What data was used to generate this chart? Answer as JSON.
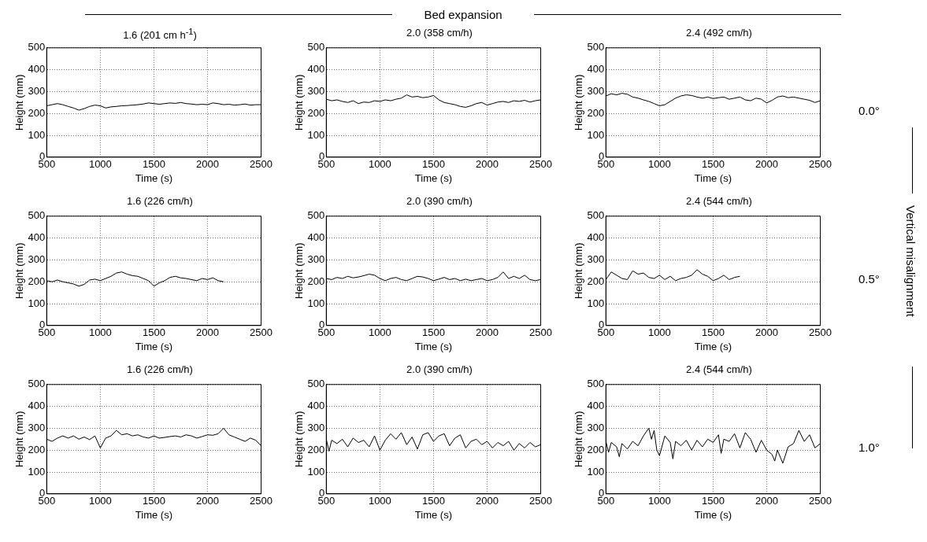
{
  "chart_data": [
    {
      "type": "line",
      "title": "1.6 (201 cm h$^{-1}$)",
      "xlabel": "Time (s)",
      "ylabel": "Height (mm)",
      "color": "#000000",
      "xlim": [
        500,
        2500
      ],
      "xticks": [
        500,
        1000,
        1500,
        2000,
        2500
      ],
      "ylim": [
        0,
        500
      ],
      "yticks": [
        0,
        100,
        200,
        300,
        400,
        500
      ],
      "grid": true,
      "x": [
        500,
        550,
        600,
        650,
        700,
        750,
        800,
        850,
        900,
        950,
        1000,
        1050,
        1100,
        1150,
        1200,
        1250,
        1300,
        1350,
        1400,
        1450,
        1500,
        1550,
        1600,
        1650,
        1700,
        1750,
        1800,
        1850,
        1900,
        1950,
        2000,
        2050,
        2100,
        2150,
        2200,
        2250,
        2300,
        2350,
        2400,
        2450,
        2500
      ],
      "values": [
        235,
        240,
        245,
        240,
        232,
        225,
        215,
        222,
        232,
        238,
        235,
        225,
        230,
        232,
        235,
        236,
        238,
        240,
        243,
        248,
        245,
        242,
        245,
        248,
        246,
        250,
        245,
        243,
        240,
        242,
        240,
        248,
        245,
        240,
        242,
        238,
        240,
        243,
        238,
        240,
        240
      ]
    },
    {
      "type": "line",
      "title": "2.0 (358 cm/h)",
      "xlabel": "Time (s)",
      "ylabel": "Height (mm)",
      "color": "#000000",
      "xlim": [
        500,
        2500
      ],
      "xticks": [
        500,
        1000,
        1500,
        2000,
        2500
      ],
      "ylim": [
        0,
        500
      ],
      "yticks": [
        0,
        100,
        200,
        300,
        400,
        500
      ],
      "grid": true,
      "annotations": [
        "Bed expansion"
      ],
      "x": [
        500,
        550,
        600,
        650,
        700,
        750,
        800,
        850,
        900,
        950,
        1000,
        1050,
        1100,
        1150,
        1200,
        1250,
        1300,
        1350,
        1400,
        1450,
        1500,
        1550,
        1600,
        1650,
        1700,
        1750,
        1800,
        1850,
        1900,
        1950,
        2000,
        2050,
        2100,
        2150,
        2200,
        2250,
        2300,
        2350,
        2400,
        2450,
        2500
      ],
      "values": [
        265,
        258,
        262,
        255,
        250,
        258,
        245,
        252,
        250,
        258,
        255,
        262,
        258,
        265,
        270,
        285,
        275,
        278,
        272,
        275,
        282,
        262,
        250,
        245,
        240,
        232,
        228,
        235,
        245,
        250,
        238,
        245,
        252,
        255,
        250,
        258,
        255,
        260,
        252,
        258,
        262
      ]
    },
    {
      "type": "line",
      "title": "2.4 (492 cm/h)",
      "xlabel": "Time (s)",
      "ylabel": "Height (mm)",
      "color": "#000000",
      "xlim": [
        500,
        2500
      ],
      "xticks": [
        500,
        1000,
        1500,
        2000,
        2500
      ],
      "ylim": [
        0,
        500
      ],
      "yticks": [
        0,
        100,
        200,
        300,
        400,
        500
      ],
      "grid": true,
      "annotations": [
        "0.0°"
      ],
      "x": [
        500,
        550,
        600,
        650,
        700,
        750,
        800,
        850,
        900,
        950,
        1000,
        1050,
        1100,
        1150,
        1200,
        1250,
        1300,
        1350,
        1400,
        1450,
        1500,
        1550,
        1600,
        1650,
        1700,
        1750,
        1800,
        1850,
        1900,
        1950,
        2000,
        2050,
        2100,
        2150,
        2200,
        2250,
        2300,
        2350,
        2400,
        2450,
        2500
      ],
      "values": [
        280,
        290,
        285,
        292,
        288,
        275,
        270,
        262,
        255,
        245,
        235,
        240,
        255,
        270,
        280,
        285,
        282,
        275,
        270,
        275,
        268,
        272,
        275,
        265,
        270,
        275,
        262,
        258,
        270,
        265,
        248,
        260,
        275,
        280,
        272,
        275,
        270,
        265,
        260,
        250,
        258
      ]
    },
    {
      "type": "line",
      "title": "1.6 (226 cm/h)",
      "xlabel": "Time (s)",
      "ylabel": "Height (mm)",
      "color": "#000000",
      "xlim": [
        500,
        2500
      ],
      "xticks": [
        500,
        1000,
        1500,
        2000,
        2500
      ],
      "ylim": [
        0,
        500
      ],
      "yticks": [
        0,
        100,
        200,
        300,
        400,
        500
      ],
      "grid": true,
      "x": [
        500,
        550,
        600,
        650,
        700,
        750,
        800,
        850,
        900,
        950,
        1000,
        1050,
        1100,
        1150,
        1200,
        1250,
        1300,
        1350,
        1400,
        1450,
        1500,
        1550,
        1600,
        1650,
        1700,
        1750,
        1800,
        1850,
        1900,
        1950,
        2000,
        2050,
        2100,
        2150
      ],
      "values": [
        205,
        200,
        208,
        200,
        195,
        190,
        180,
        188,
        208,
        212,
        205,
        215,
        225,
        240,
        245,
        235,
        228,
        225,
        215,
        205,
        180,
        195,
        205,
        220,
        225,
        218,
        215,
        210,
        205,
        215,
        210,
        218,
        205,
        200
      ]
    },
    {
      "type": "line",
      "title": "2.0 (390 cm/h)",
      "xlabel": "Time (s)",
      "ylabel": "Height (mm)",
      "color": "#000000",
      "xlim": [
        500,
        2500
      ],
      "xticks": [
        500,
        1000,
        1500,
        2000,
        2500
      ],
      "ylim": [
        0,
        500
      ],
      "yticks": [
        0,
        100,
        200,
        300,
        400,
        500
      ],
      "grid": true,
      "x": [
        500,
        550,
        600,
        650,
        700,
        750,
        800,
        850,
        900,
        950,
        1000,
        1050,
        1100,
        1150,
        1200,
        1250,
        1300,
        1350,
        1400,
        1450,
        1500,
        1550,
        1600,
        1650,
        1700,
        1750,
        1800,
        1850,
        1900,
        1950,
        2000,
        2050,
        2100,
        2150,
        2200,
        2250,
        2300,
        2350,
        2400,
        2450,
        2500
      ],
      "values": [
        215,
        210,
        220,
        215,
        225,
        218,
        222,
        228,
        235,
        230,
        215,
        205,
        215,
        220,
        210,
        205,
        215,
        225,
        222,
        215,
        205,
        212,
        220,
        210,
        215,
        205,
        212,
        205,
        210,
        215,
        205,
        210,
        220,
        245,
        215,
        225,
        215,
        230,
        210,
        205,
        210
      ]
    },
    {
      "type": "line",
      "title": "2.4 (544 cm/h)",
      "xlabel": "Time (s)",
      "ylabel": "Height (mm)",
      "color": "#000000",
      "xlim": [
        500,
        2500
      ],
      "xticks": [
        500,
        1000,
        1500,
        2000,
        2500
      ],
      "ylim": [
        0,
        500
      ],
      "yticks": [
        0,
        100,
        200,
        300,
        400,
        500
      ],
      "grid": true,
      "annotations": [
        "0.5°",
        "Vertical misalignment"
      ],
      "x": [
        500,
        550,
        600,
        650,
        700,
        750,
        800,
        850,
        900,
        950,
        1000,
        1050,
        1100,
        1150,
        1200,
        1250,
        1300,
        1350,
        1400,
        1450,
        1500,
        1550,
        1600,
        1650,
        1700,
        1750
      ],
      "values": [
        210,
        245,
        230,
        215,
        210,
        250,
        235,
        240,
        220,
        215,
        230,
        210,
        225,
        205,
        215,
        220,
        230,
        255,
        235,
        225,
        205,
        215,
        230,
        210,
        220,
        225
      ]
    },
    {
      "type": "line",
      "title": "1.6 (226 cm/h)",
      "xlabel": "Time (s)",
      "ylabel": "Height (mm)",
      "color": "#000000",
      "xlim": [
        500,
        2500
      ],
      "xticks": [
        500,
        1000,
        1500,
        2000,
        2500
      ],
      "ylim": [
        0,
        500
      ],
      "yticks": [
        0,
        100,
        200,
        300,
        400,
        500
      ],
      "grid": true,
      "x": [
        500,
        550,
        600,
        650,
        700,
        750,
        800,
        850,
        900,
        950,
        1000,
        1050,
        1100,
        1150,
        1200,
        1250,
        1300,
        1350,
        1400,
        1450,
        1500,
        1550,
        1600,
        1650,
        1700,
        1750,
        1800,
        1850,
        1900,
        1950,
        2000,
        2050,
        2100,
        2150,
        2200,
        2250,
        2300,
        2350,
        2400,
        2450,
        2500
      ],
      "values": [
        250,
        240,
        255,
        265,
        255,
        265,
        250,
        260,
        248,
        265,
        210,
        255,
        265,
        290,
        270,
        275,
        265,
        270,
        260,
        255,
        265,
        255,
        258,
        262,
        265,
        260,
        270,
        265,
        255,
        262,
        270,
        268,
        275,
        300,
        270,
        260,
        250,
        240,
        255,
        245,
        220
      ]
    },
    {
      "type": "line",
      "title": "2.0 (390 cm/h)",
      "xlabel": "Time (s)",
      "ylabel": "Height (mm)",
      "color": "#000000",
      "xlim": [
        500,
        2500
      ],
      "xticks": [
        500,
        1000,
        1500,
        2000,
        2500
      ],
      "ylim": [
        0,
        500
      ],
      "yticks": [
        0,
        100,
        200,
        300,
        400,
        500
      ],
      "grid": true,
      "x": [
        500,
        525,
        550,
        600,
        650,
        700,
        750,
        800,
        850,
        900,
        950,
        1000,
        1050,
        1100,
        1150,
        1200,
        1250,
        1300,
        1350,
        1400,
        1450,
        1500,
        1550,
        1600,
        1650,
        1700,
        1750,
        1800,
        1850,
        1900,
        1950,
        2000,
        2050,
        2100,
        2150,
        2200,
        2250,
        2300,
        2350,
        2400,
        2450,
        2500
      ],
      "values": [
        250,
        195,
        245,
        230,
        250,
        215,
        255,
        235,
        245,
        215,
        265,
        200,
        245,
        275,
        250,
        280,
        225,
        260,
        205,
        270,
        280,
        240,
        265,
        275,
        220,
        255,
        270,
        210,
        240,
        250,
        225,
        240,
        210,
        235,
        220,
        240,
        200,
        230,
        210,
        235,
        215,
        225
      ]
    },
    {
      "type": "line",
      "title": "2.4 (544 cm/h)",
      "xlabel": "Time (s)",
      "ylabel": "Height (mm)",
      "color": "#000000",
      "xlim": [
        500,
        2500
      ],
      "xticks": [
        500,
        1000,
        1500,
        2000,
        2500
      ],
      "ylim": [
        0,
        500
      ],
      "yticks": [
        0,
        100,
        200,
        300,
        400,
        500
      ],
      "grid": true,
      "annotations": [
        "1.0°"
      ],
      "x": [
        500,
        525,
        550,
        600,
        625,
        650,
        700,
        750,
        800,
        850,
        900,
        925,
        950,
        975,
        1000,
        1050,
        1100,
        1125,
        1150,
        1200,
        1250,
        1300,
        1350,
        1400,
        1450,
        1500,
        1550,
        1575,
        1600,
        1650,
        1700,
        1750,
        1800,
        1850,
        1900,
        1950,
        2000,
        2050,
        2075,
        2100,
        2150,
        2200,
        2250,
        2300,
        2350,
        2400,
        2450,
        2500
      ],
      "values": [
        240,
        190,
        235,
        215,
        170,
        230,
        205,
        240,
        220,
        265,
        300,
        250,
        290,
        200,
        175,
        265,
        235,
        160,
        240,
        220,
        245,
        200,
        245,
        215,
        250,
        235,
        270,
        185,
        250,
        240,
        275,
        210,
        280,
        250,
        190,
        245,
        200,
        180,
        150,
        200,
        140,
        215,
        230,
        290,
        240,
        270,
        210,
        230
      ]
    }
  ]
}
